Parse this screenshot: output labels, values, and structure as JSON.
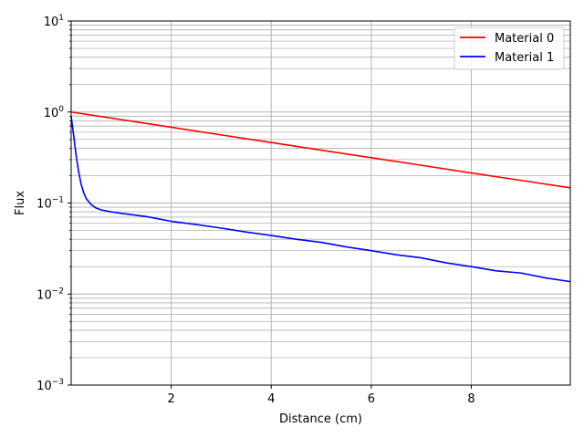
{
  "chart_data": {
    "type": "line",
    "title": "",
    "xlabel": "Distance (cm)",
    "ylabel": "Flux",
    "xlim": [
      0.0,
      9.98
    ],
    "ylim": [
      0.001,
      10
    ],
    "yscale": "log",
    "grid": "on (major and minor on y; major on x)",
    "legend_position": "top-right",
    "x_ticks": [
      2,
      4,
      6,
      8
    ],
    "x_tick_labels": [
      "2",
      "4",
      "6",
      "8"
    ],
    "y_ticks": [
      0.001,
      0.01,
      0.1,
      1,
      10
    ],
    "y_tick_labels": [
      {
        "base": "10",
        "exp": "−3"
      },
      {
        "base": "10",
        "exp": "−2"
      },
      {
        "base": "10",
        "exp": "−1"
      },
      {
        "base": "10",
        "exp": "0"
      },
      {
        "base": "10",
        "exp": "1"
      }
    ],
    "series": [
      {
        "name": "Material 0",
        "color": "#ff0000",
        "x": [
          0.0,
          1.0,
          2.0,
          3.0,
          4.0,
          5.0,
          6.0,
          7.0,
          8.0,
          9.0,
          9.98
        ],
        "y": [
          1.0,
          0.825,
          0.68,
          0.56,
          0.462,
          0.381,
          0.315,
          0.26,
          0.214,
          0.177,
          0.147
        ]
      },
      {
        "name": "Material 1",
        "color": "#0000ff",
        "x": [
          0.0,
          0.05,
          0.1,
          0.15,
          0.2,
          0.25,
          0.3,
          0.4,
          0.5,
          0.6,
          0.8,
          1.0,
          1.5,
          2.0,
          2.5,
          3.0,
          3.5,
          4.0,
          4.5,
          5.0,
          5.5,
          6.0,
          6.5,
          7.0,
          7.5,
          8.0,
          8.5,
          9.0,
          9.5,
          9.98
        ],
        "y": [
          0.9,
          0.55,
          0.33,
          0.22,
          0.16,
          0.13,
          0.112,
          0.096,
          0.088,
          0.084,
          0.08,
          0.077,
          0.071,
          0.063,
          0.058,
          0.053,
          0.048,
          0.044,
          0.04,
          0.037,
          0.033,
          0.03,
          0.027,
          0.025,
          0.022,
          0.02,
          0.018,
          0.017,
          0.015,
          0.0137
        ]
      }
    ]
  }
}
